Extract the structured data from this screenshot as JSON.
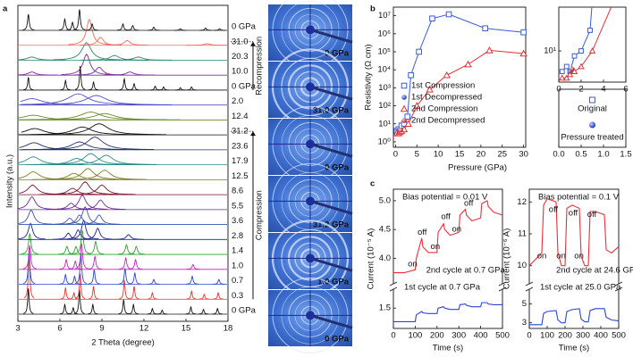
{
  "chart_data": [
    {
      "type": "xrd_stack",
      "panel": "a",
      "xlabel": "2 Theta (degree)",
      "ylabel": "Intensity (a.u.)",
      "xlim": [
        3,
        18
      ],
      "xticks": [
        3,
        6,
        9,
        12,
        15,
        18
      ],
      "annotations": [
        "Compression",
        "Recompression"
      ],
      "series": [
        {
          "name": "0 GPa",
          "color": "#111111",
          "peak_width": 0.06,
          "peaks": [
            3.75,
            6.35,
            6.95,
            7.4,
            8.35,
            10.55,
            11.25,
            12.6,
            13.3,
            15.35,
            16.25,
            17.25
          ],
          "heights": [
            1.6,
            0.6,
            0.4,
            1.5,
            0.6,
            0.9,
            0.6,
            0.35,
            0.25,
            0.45,
            0.3,
            0.35
          ]
        },
        {
          "name": "0.3",
          "color": "#e8302c",
          "peak_width": 0.06,
          "peaks": [
            3.8,
            6.4,
            7.0,
            7.45,
            8.4,
            10.6,
            11.3,
            12.6,
            15.4,
            16.3,
            17.3
          ],
          "heights": [
            3.2,
            0.7,
            0.4,
            1.6,
            0.8,
            1.2,
            0.8,
            0.4,
            0.5,
            0.3,
            0.4
          ]
        },
        {
          "name": "0.7",
          "color": "#2a45d6",
          "peak_width": 0.07,
          "peaks": [
            3.8,
            6.4,
            7.05,
            7.5,
            8.45,
            10.65,
            11.35,
            12.7,
            15.45,
            17.35
          ],
          "heights": [
            2.0,
            0.6,
            0.5,
            1.9,
            0.9,
            1.0,
            0.7,
            0.3,
            0.5,
            0.3
          ]
        },
        {
          "name": "1.0",
          "color": "#c81fc8",
          "peak_width": 0.08,
          "peaks": [
            3.85,
            6.45,
            7.1,
            7.55,
            8.5,
            10.7,
            11.4,
            15.5
          ],
          "heights": [
            1.5,
            0.6,
            0.5,
            1.6,
            0.8,
            0.7,
            0.6,
            0.3
          ]
        },
        {
          "name": "1.4",
          "color": "#2ea02e",
          "peak_width": 0.1,
          "peaks": [
            3.85,
            6.5,
            7.15,
            7.6,
            8.55,
            10.75,
            11.45
          ],
          "heights": [
            1.3,
            0.5,
            0.5,
            1.5,
            0.8,
            0.6,
            0.5
          ]
        },
        {
          "name": "2.8",
          "color": "#1c2290",
          "peak_width": 0.18,
          "peaks": [
            3.9,
            6.6,
            7.3,
            7.7,
            8.7,
            10.9
          ],
          "heights": [
            1.0,
            0.4,
            0.6,
            1.2,
            0.7,
            0.3
          ]
        },
        {
          "name": "3.6",
          "color": "#3a55b5",
          "peak_width": 0.25,
          "peaks": [
            3.95,
            6.7,
            7.4,
            7.8,
            8.8
          ],
          "heights": [
            0.9,
            0.4,
            0.6,
            1.1,
            0.6
          ]
        },
        {
          "name": "5.5",
          "color": "#6a2a9a",
          "peak_width": 0.3,
          "peaks": [
            4.0,
            6.8,
            7.6,
            8.9
          ],
          "heights": [
            0.8,
            0.4,
            0.9,
            0.6
          ]
        },
        {
          "name": "8.6",
          "color": "#7a1028",
          "peak_width": 0.4,
          "peaks": [
            4.05,
            6.9,
            7.8,
            9.0
          ],
          "heights": [
            0.6,
            0.4,
            0.8,
            0.6
          ]
        },
        {
          "name": "12.5",
          "color": "#7d7d22",
          "peak_width": 0.5,
          "peaks": [
            4.1,
            7.0,
            8.0,
            9.2
          ],
          "heights": [
            0.5,
            0.4,
            0.7,
            0.6
          ]
        },
        {
          "name": "17.9",
          "color": "#2a8a8a",
          "peak_width": 0.6,
          "peaks": [
            4.1,
            7.2,
            8.2,
            9.3
          ],
          "heights": [
            0.5,
            0.4,
            0.7,
            0.6
          ]
        },
        {
          "name": "23.6",
          "color": "#24306e",
          "peak_width": 0.7,
          "peaks": [
            4.15,
            7.4,
            8.5
          ],
          "heights": [
            0.45,
            0.5,
            0.8
          ]
        },
        {
          "name": "31.2",
          "color": "#111111",
          "peak_width": 0.8,
          "peaks": [
            4.2,
            7.6,
            8.8
          ],
          "heights": [
            0.4,
            0.5,
            0.7
          ]
        },
        {
          "name": "12.4",
          "color": "#6b8a2a",
          "peak_width": 0.9,
          "peaks": [
            4.1,
            8.2,
            9.2
          ],
          "heights": [
            0.3,
            0.5,
            0.4
          ]
        },
        {
          "name": "2.0",
          "color": "#5050c8",
          "peak_width": 0.9,
          "peaks": [
            4.0,
            7.3,
            8.6
          ],
          "heights": [
            0.4,
            0.7,
            0.6
          ]
        },
        {
          "name": "0 GPa",
          "color": "#111111",
          "peak_width": 0.06,
          "peaks": [
            3.75,
            6.4,
            7.45,
            8.4,
            10.6,
            11.3,
            12.8,
            13.4,
            14.6,
            15.4
          ],
          "heights": [
            0.8,
            0.6,
            1.5,
            0.5,
            0.7,
            0.4,
            0.25,
            0.2,
            0.15,
            0.2
          ]
        },
        {
          "name": "10.0",
          "color": "#7a2aa0",
          "peak_width": 0.3,
          "peaks": [
            4.0,
            7.9,
            8.8,
            11.0
          ],
          "heights": [
            0.2,
            1.3,
            0.5,
            0.2
          ]
        },
        {
          "name": "20.3",
          "color": "#2a8a6a",
          "peak_width": 0.4,
          "peaks": [
            4.0,
            7.9,
            9.9,
            11.6
          ],
          "heights": [
            0.2,
            1.1,
            0.3,
            0.2
          ]
        },
        {
          "name": "31.0",
          "color": "#f26b5c",
          "peak_width": 0.25,
          "peaks": [
            8.1,
            8.9,
            10.8,
            16.5
          ],
          "heights": [
            1.6,
            0.5,
            0.3,
            0.1
          ]
        },
        {
          "name": "0 GPa",
          "color": "#111111",
          "peak_width": 0.07,
          "peaks": [
            3.75,
            6.35,
            6.9,
            7.4,
            8.3,
            10.5,
            11.2,
            12.7,
            14.6,
            16.4,
            17.4
          ],
          "heights": [
            1.0,
            0.7,
            0.5,
            1.3,
            0.4,
            0.4,
            0.3,
            0.2,
            0.1,
            0.15,
            0.1
          ]
        }
      ]
    },
    {
      "type": "scatter",
      "panel": "b",
      "xlabel": "Pressure (GPa)",
      "ylabel": "Resistivity (Ω cm)",
      "log_y": true,
      "xlim": [
        -0.5,
        30.5
      ],
      "ylim": [
        0.5,
        30000000
      ],
      "xticks": [
        0,
        5,
        10,
        15,
        20,
        25,
        30
      ],
      "yticks": [
        {
          "value": 1,
          "label": "10⁰"
        },
        {
          "value": 10,
          "label": "10¹"
        },
        {
          "value": 100,
          "label": "10²"
        },
        {
          "value": 1000,
          "label": "10³"
        },
        {
          "value": 10000,
          "label": "10⁴"
        },
        {
          "value": 100000,
          "label": "10⁵"
        },
        {
          "value": 1000000,
          "label": "10⁶"
        },
        {
          "value": 10000000,
          "label": "10⁷"
        }
      ],
      "series": [
        {
          "name": "1st Compression",
          "color": "#3b5bd6",
          "marker": "square",
          "line": true,
          "x": [
            0.3,
            0.7,
            1.0,
            1.4,
            2.0,
            2.8,
            3.6,
            5.5,
            8.6,
            12.5,
            21.0,
            30.0
          ],
          "values": [
            4,
            5,
            4,
            8,
            10,
            25,
            5000,
            100000,
            7000000,
            12000000,
            2000000,
            1200000
          ]
        },
        {
          "name": "1st Decompressed",
          "color": "#2a45d6",
          "marker": "circle",
          "line": false,
          "x": [
            1.0
          ],
          "values": [
            4
          ]
        },
        {
          "name": "2nd Compression",
          "color": "#e0303a",
          "marker": "triangle",
          "line": true,
          "x": [
            0.3,
            0.7,
            1.0,
            1.4,
            2.0,
            3.0,
            5.0,
            8.0,
            12.0,
            17.0,
            22.0,
            30.0
          ],
          "values": [
            3,
            3,
            3.5,
            4,
            5,
            10,
            100,
            800,
            5000,
            20000,
            120000,
            80000
          ]
        },
        {
          "name": "2nd Decompressed",
          "color": "#e0303a",
          "marker": "circle",
          "line": false,
          "x": [
            1.2
          ],
          "values": [
            4.5
          ]
        }
      ],
      "inset": {
        "xlim": [
          0,
          6
        ],
        "ylim": [
          2.5,
          70
        ],
        "xticks": [
          0,
          2,
          4,
          6
        ],
        "yticks": [
          {
            "value": 10,
            "label": "10¹"
          }
        ]
      },
      "inset2": {
        "xlim": [
          0,
          1.5
        ],
        "xticks": [
          {
            "value": 0,
            "label": "0.0"
          },
          0.5,
          {
            "value": 1,
            "label": "1.0"
          },
          1.5
        ],
        "legend": [
          "Original",
          "Pressure treated"
        ]
      }
    },
    {
      "type": "broken_line",
      "panel": "c",
      "title": "Bias potential = 0.01 V",
      "xlabel": "Time (s)",
      "ylabel": "Current (10⁻⁵ A)",
      "xlim": [
        0,
        500
      ],
      "xticks": [
        0,
        100,
        200,
        300,
        400,
        500
      ],
      "ylim": [
        3.65,
        5.2
      ],
      "yticks": [
        {
          "value": 4,
          "label": "4.0"
        },
        4.5,
        {
          "value": 5,
          "label": "5.0"
        }
      ],
      "y2lim": [
        1.2,
        1.7
      ],
      "y2ticks": [
        1.5
      ],
      "x": [
        0,
        50,
        100,
        105,
        130,
        135,
        160,
        200,
        205,
        230,
        235,
        260,
        300,
        305,
        330,
        335,
        360,
        400,
        405,
        430,
        435,
        460,
        500
      ],
      "annotations": [
        "on",
        "off",
        "on",
        "off",
        "on",
        "off"
      ],
      "series": [
        {
          "name": "2nd cycle at 0.7 GPa",
          "color": "#e8303c",
          "values": [
            3.75,
            3.75,
            3.8,
            4.0,
            4.35,
            4.2,
            4.1,
            4.1,
            4.45,
            4.6,
            4.5,
            4.4,
            4.45,
            4.75,
            4.85,
            4.75,
            4.65,
            4.7,
            4.95,
            5.0,
            4.9,
            4.8,
            4.75
          ]
        },
        {
          "name": "1st cycle at 0.7 GPa",
          "color": "#2a45d6",
          "axis": "y2",
          "values": [
            1.3,
            1.3,
            1.3,
            1.4,
            1.45,
            1.43,
            1.42,
            1.42,
            1.5,
            1.52,
            1.5,
            1.48,
            1.48,
            1.55,
            1.56,
            1.54,
            1.52,
            1.52,
            1.58,
            1.58,
            1.56,
            1.55,
            1.55
          ]
        }
      ]
    },
    {
      "type": "broken_line",
      "title": "Bias potential = 0.1 V",
      "xlabel": "Time (s)",
      "ylabel": "Current (10⁻⁶ A)",
      "xlim": [
        0,
        500
      ],
      "xticks": [
        0,
        100,
        200,
        300,
        400,
        500
      ],
      "ylim": [
        9.6,
        12.4
      ],
      "yticks": [
        10,
        11,
        12
      ],
      "y2lim": [
        2.4,
        6
      ],
      "y2ticks": [
        3,
        5
      ],
      "x": [
        0,
        70,
        80,
        100,
        150,
        160,
        180,
        200,
        210,
        240,
        280,
        290,
        310,
        330,
        340,
        370,
        420,
        430,
        460,
        500
      ],
      "annotations": [
        "on",
        "off",
        "on",
        "off",
        "on",
        "off"
      ],
      "series": [
        {
          "name": "2nd cycle at 24.6 GPa",
          "color": "#e8303c",
          "values": [
            10.0,
            10.4,
            11.9,
            12.1,
            12.0,
            10.4,
            10.0,
            10.0,
            11.8,
            11.9,
            11.8,
            10.3,
            10.0,
            10.0,
            11.7,
            11.7,
            11.6,
            10.5,
            10.4,
            10.6
          ]
        },
        {
          "name": "1st cycle at 25.0 GPa",
          "color": "#2a45d6",
          "axis": "y2",
          "values": [
            2.8,
            2.8,
            4.0,
            4.2,
            4.3,
            3.3,
            3.0,
            3.0,
            4.2,
            4.4,
            4.5,
            3.4,
            3.1,
            3.1,
            4.3,
            4.5,
            4.5,
            3.6,
            3.3,
            3.2
          ]
        }
      ]
    }
  ],
  "images": {
    "labels": [
      "0 GPa",
      "31.0 GPa",
      "0 GPa",
      "31.2 GPa",
      "1.0 GPa",
      "0 GPa"
    ]
  }
}
